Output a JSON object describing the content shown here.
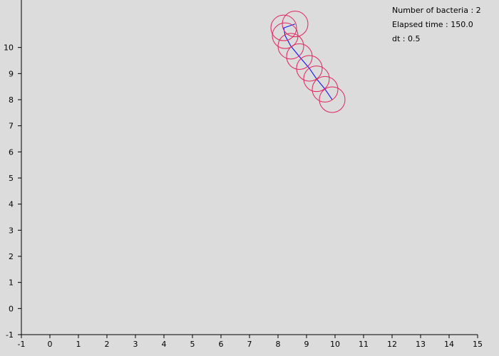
{
  "status": {
    "bacteria_label": "Number of bacteria : ",
    "bacteria_count": "2",
    "elapsed_label": "Elapsed time : ",
    "elapsed_value": "150.0",
    "dt_label": "dt : ",
    "dt_value": "0.5"
  },
  "colors": {
    "background": "#dcdcdc",
    "axis": "#000000",
    "cell": "#e0245e",
    "trajectory": "#0000ff"
  },
  "chart_data": {
    "type": "scatter",
    "title": "",
    "xlabel": "",
    "ylabel": "",
    "xlim": [
      -1,
      15
    ],
    "ylim": [
      -1,
      11
    ],
    "x_ticks": [
      -1,
      0,
      1,
      2,
      3,
      4,
      5,
      6,
      7,
      8,
      9,
      10,
      11,
      12,
      13,
      14,
      15
    ],
    "y_ticks": [
      -1,
      0,
      1,
      2,
      3,
      4,
      5,
      6,
      7,
      8,
      9,
      10
    ],
    "cell_radius": 0.45,
    "series": [
      {
        "values": [
          [
            9.9,
            8.0
          ],
          [
            9.65,
            8.4
          ],
          [
            9.35,
            8.8
          ],
          [
            9.1,
            9.2
          ],
          [
            8.75,
            9.65
          ],
          [
            8.45,
            10.05
          ],
          [
            8.25,
            10.45
          ],
          [
            8.2,
            10.75
          ],
          [
            8.6,
            10.9
          ]
        ]
      }
    ]
  }
}
